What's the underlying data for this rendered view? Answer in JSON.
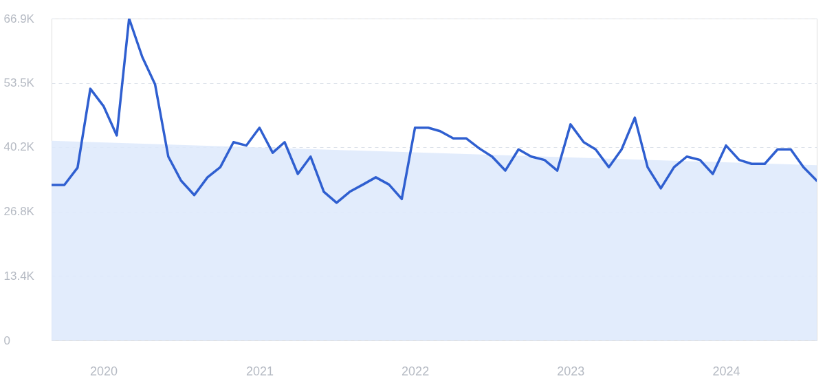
{
  "chart_data": {
    "type": "line",
    "x": [
      "2019-09",
      "2019-10",
      "2019-11",
      "2019-12",
      "2020-01",
      "2020-02",
      "2020-03",
      "2020-04",
      "2020-05",
      "2020-06",
      "2020-07",
      "2020-08",
      "2020-09",
      "2020-10",
      "2020-11",
      "2020-12",
      "2021-01",
      "2021-02",
      "2021-03",
      "2021-04",
      "2021-05",
      "2021-06",
      "2021-07",
      "2021-08",
      "2021-09",
      "2021-10",
      "2021-11",
      "2021-12",
      "2022-01",
      "2022-02",
      "2022-03",
      "2022-04",
      "2022-05",
      "2022-06",
      "2022-07",
      "2022-08",
      "2022-09",
      "2022-10",
      "2022-11",
      "2022-12",
      "2023-01",
      "2023-02",
      "2023-03",
      "2023-04",
      "2023-05",
      "2023-06",
      "2023-07",
      "2023-08",
      "2023-09",
      "2023-10",
      "2023-11",
      "2023-12",
      "2024-01",
      "2024-02",
      "2024-03",
      "2024-04",
      "2024-05",
      "2024-06",
      "2024-07",
      "2024-08"
    ],
    "series": [
      {
        "type": "area",
        "color": "#dde9fb",
        "x": [
          "2019-09",
          "2024-08"
        ],
        "values": [
          41500,
          36400
        ]
      },
      {
        "color": "#2f5fd0",
        "values": [
          32300,
          32300,
          35900,
          52300,
          48700,
          42600,
          66900,
          58900,
          53200,
          38200,
          33200,
          30200,
          33900,
          36000,
          41200,
          40500,
          44200,
          39000,
          41200,
          34600,
          38200,
          30900,
          28600,
          30900,
          32400,
          33900,
          32400,
          29400,
          44200,
          44200,
          43500,
          42000,
          42000,
          39900,
          38200,
          35300,
          39700,
          38200,
          37500,
          35300,
          44900,
          41200,
          39700,
          36000,
          39700,
          46300,
          36000,
          31600,
          36000,
          38200,
          37500,
          34600,
          40500,
          37500,
          36700,
          36700,
          39700,
          39700,
          36000,
          33200
        ]
      }
    ],
    "xlim": [
      "2019-09",
      "2024-08"
    ],
    "xticks": [
      "2020",
      "2021",
      "2022",
      "2023",
      "2024"
    ],
    "ylim": [
      0,
      66900
    ],
    "yticks": [
      0,
      {
        "value": 13400,
        "label": "13.4K"
      },
      {
        "value": 26800,
        "label": "26.8K"
      },
      {
        "value": 40200,
        "label": "40.2K"
      },
      {
        "value": 53500,
        "label": "53.5K"
      },
      {
        "value": 66900,
        "label": "66.9K"
      }
    ],
    "grid": "y",
    "marker": "none",
    "line_style": "solid"
  }
}
